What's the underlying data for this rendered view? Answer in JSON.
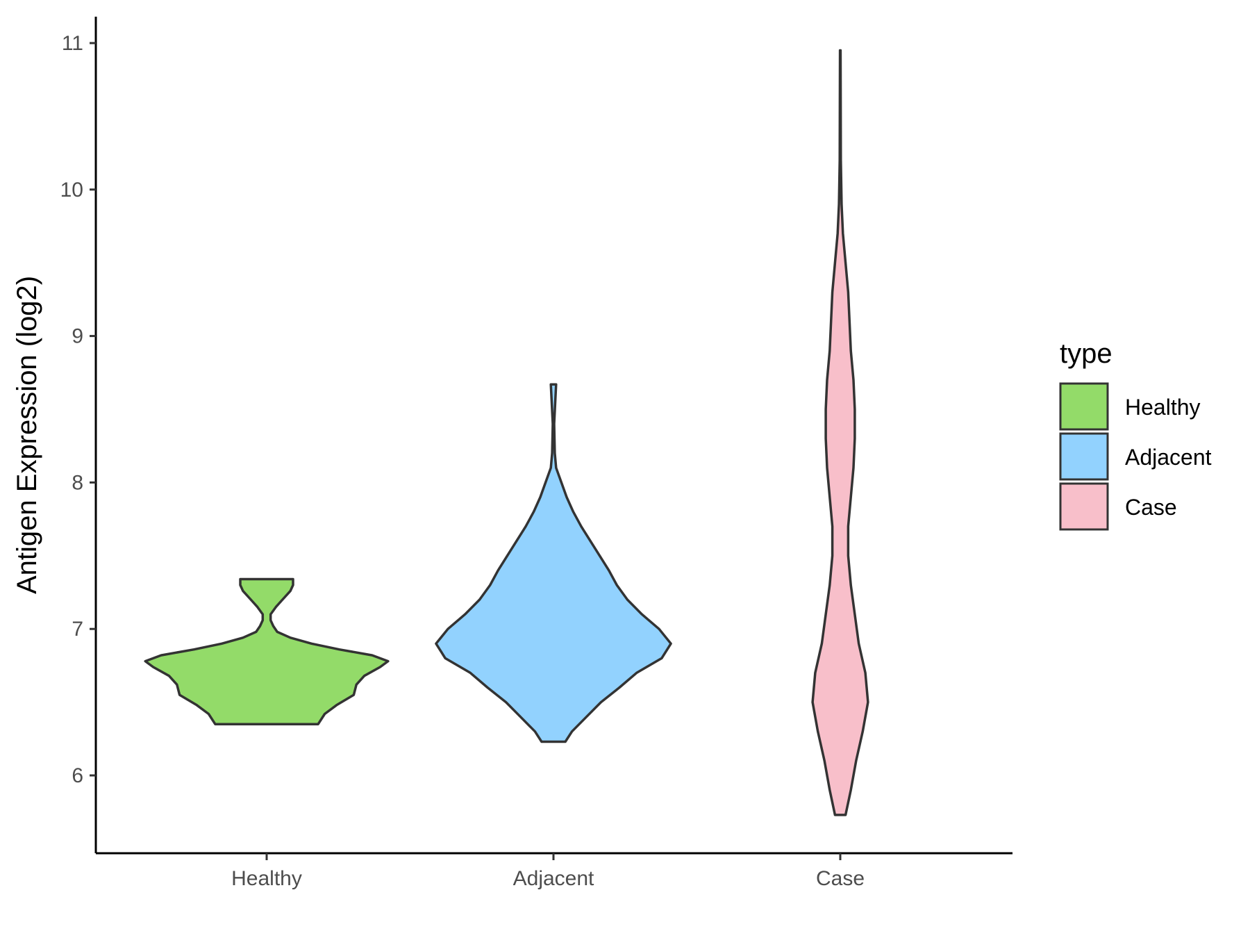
{
  "chart_data": {
    "type": "violin",
    "title": "",
    "xlabel": "",
    "ylabel": "Antigen Expression (log2)",
    "ylim": [
      5.45,
      11.2
    ],
    "yticks": [
      6,
      7,
      8,
      9,
      10,
      11
    ],
    "categories": [
      "Healthy",
      "Adjacent",
      "Case"
    ],
    "legend": {
      "title": "type",
      "position": "right"
    },
    "series": [
      {
        "name": "Healthy",
        "color": "#93DB69",
        "min": 6.35,
        "max": 7.34,
        "profile": [
          [
            6.35,
            0.39
          ],
          [
            6.42,
            0.44
          ],
          [
            6.48,
            0.53
          ],
          [
            6.55,
            0.66
          ],
          [
            6.62,
            0.68
          ],
          [
            6.68,
            0.74
          ],
          [
            6.74,
            0.86
          ],
          [
            6.78,
            0.92
          ],
          [
            6.82,
            0.8
          ],
          [
            6.86,
            0.55
          ],
          [
            6.9,
            0.34
          ],
          [
            6.94,
            0.18
          ],
          [
            6.98,
            0.08
          ],
          [
            7.02,
            0.05
          ],
          [
            7.06,
            0.03
          ],
          [
            7.1,
            0.03
          ],
          [
            7.15,
            0.07
          ],
          [
            7.2,
            0.12
          ],
          [
            7.26,
            0.18
          ],
          [
            7.3,
            0.2
          ],
          [
            7.34,
            0.2
          ]
        ]
      },
      {
        "name": "Adjacent",
        "color": "#92D2FE",
        "min": 6.23,
        "max": 8.67,
        "profile": [
          [
            6.23,
            0.09
          ],
          [
            6.3,
            0.14
          ],
          [
            6.4,
            0.25
          ],
          [
            6.5,
            0.36
          ],
          [
            6.6,
            0.5
          ],
          [
            6.7,
            0.63
          ],
          [
            6.8,
            0.82
          ],
          [
            6.9,
            0.89
          ],
          [
            7.0,
            0.8
          ],
          [
            7.1,
            0.67
          ],
          [
            7.2,
            0.56
          ],
          [
            7.3,
            0.48
          ],
          [
            7.4,
            0.42
          ],
          [
            7.5,
            0.35
          ],
          [
            7.6,
            0.28
          ],
          [
            7.7,
            0.21
          ],
          [
            7.8,
            0.15
          ],
          [
            7.9,
            0.1
          ],
          [
            8.0,
            0.06
          ],
          [
            8.1,
            0.02
          ],
          [
            8.2,
            0.01
          ],
          [
            8.4,
            0.005
          ],
          [
            8.67,
            0.02
          ]
        ]
      },
      {
        "name": "Case",
        "color": "#F8BFCA",
        "min": 5.73,
        "max": 10.95,
        "profile": [
          [
            5.73,
            0.04
          ],
          [
            5.9,
            0.08
          ],
          [
            6.1,
            0.12
          ],
          [
            6.3,
            0.17
          ],
          [
            6.5,
            0.21
          ],
          [
            6.7,
            0.19
          ],
          [
            6.9,
            0.14
          ],
          [
            7.1,
            0.11
          ],
          [
            7.3,
            0.08
          ],
          [
            7.5,
            0.06
          ],
          [
            7.7,
            0.06
          ],
          [
            7.9,
            0.08
          ],
          [
            8.1,
            0.1
          ],
          [
            8.3,
            0.11
          ],
          [
            8.5,
            0.11
          ],
          [
            8.7,
            0.1
          ],
          [
            8.9,
            0.08
          ],
          [
            9.1,
            0.07
          ],
          [
            9.3,
            0.06
          ],
          [
            9.5,
            0.04
          ],
          [
            9.7,
            0.02
          ],
          [
            9.9,
            0.01
          ],
          [
            10.2,
            0.004
          ],
          [
            10.6,
            0.003
          ],
          [
            10.95,
            0.002
          ]
        ]
      }
    ]
  }
}
